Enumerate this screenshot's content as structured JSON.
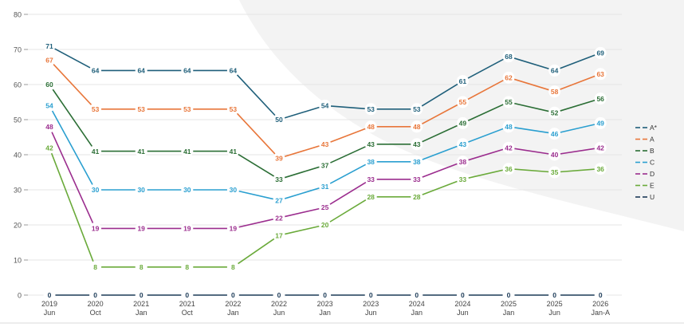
{
  "chart_data": {
    "type": "line",
    "title": "",
    "xlabel": "",
    "ylabel": "",
    "ylim": [
      0,
      80
    ],
    "y_ticks": [
      0,
      10,
      20,
      30,
      40,
      50,
      60,
      70,
      80
    ],
    "grid": true,
    "legend_position": "right",
    "categories": [
      {
        "year": "2019",
        "sub": "Jun"
      },
      {
        "year": "2020",
        "sub": "Oct"
      },
      {
        "year": "2021",
        "sub": "Jan"
      },
      {
        "year": "2021",
        "sub": "Oct"
      },
      {
        "year": "2022",
        "sub": "Jan"
      },
      {
        "year": "2022",
        "sub": "Jun"
      },
      {
        "year": "2023",
        "sub": "Jan"
      },
      {
        "year": "2023",
        "sub": "Jun"
      },
      {
        "year": "2024",
        "sub": "Jan"
      },
      {
        "year": "2024",
        "sub": "Jun"
      },
      {
        "year": "2025",
        "sub": "Jan"
      },
      {
        "year": "2025",
        "sub": "Jun"
      },
      {
        "year": "2026",
        "sub": "Jan-A"
      }
    ],
    "series": [
      {
        "name": "A*",
        "color": "#1f5f7a",
        "values": [
          71,
          64,
          64,
          64,
          64,
          50,
          54,
          53,
          53,
          61,
          68,
          64,
          69
        ]
      },
      {
        "name": "A",
        "color": "#e8763a",
        "values": [
          67,
          53,
          53,
          53,
          53,
          39,
          43,
          48,
          48,
          55,
          62,
          58,
          63
        ]
      },
      {
        "name": "B",
        "color": "#2b6e35",
        "values": [
          60,
          41,
          41,
          41,
          41,
          33,
          37,
          43,
          43,
          49,
          55,
          52,
          56
        ]
      },
      {
        "name": "C",
        "color": "#2a9fd0",
        "values": [
          54,
          30,
          30,
          30,
          30,
          27,
          31,
          38,
          38,
          43,
          48,
          46,
          49
        ]
      },
      {
        "name": "D",
        "color": "#9b2d8e",
        "values": [
          48,
          19,
          19,
          19,
          19,
          22,
          25,
          33,
          33,
          38,
          42,
          40,
          42
        ]
      },
      {
        "name": "E",
        "color": "#6aaa3a",
        "values": [
          42,
          8,
          8,
          8,
          8,
          17,
          20,
          28,
          28,
          33,
          36,
          35,
          36
        ]
      },
      {
        "name": "U",
        "color": "#1b3a57",
        "values": [
          0,
          0,
          0,
          0,
          0,
          0,
          0,
          0,
          0,
          0,
          0,
          0,
          0
        ]
      }
    ]
  }
}
